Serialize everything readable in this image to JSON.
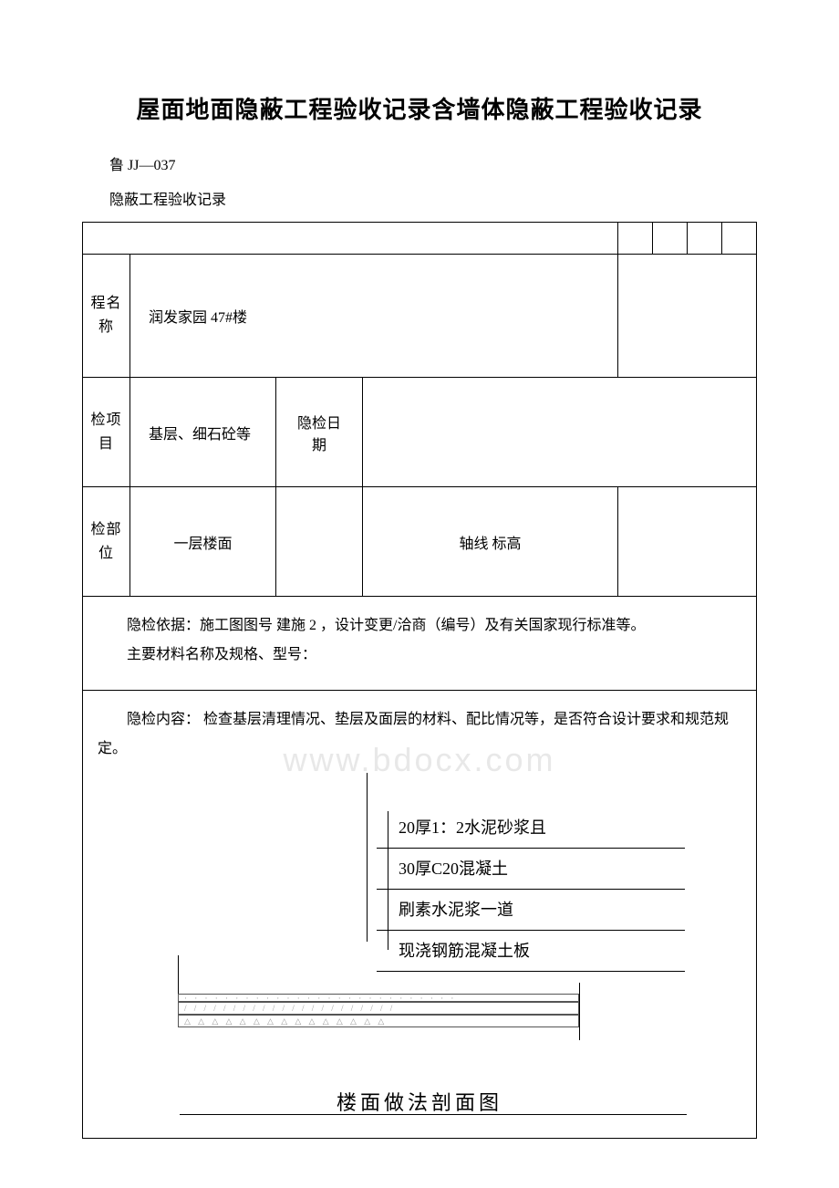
{
  "document": {
    "title": "屋面地面隐蔽工程验收记录含墙体隐蔽工程验收记录",
    "code": "鲁 JJ—037",
    "subtitle": "隐蔽工程验收记录"
  },
  "form": {
    "row1": {
      "label": "程名称",
      "value": "润发家园 47#楼"
    },
    "row2": {
      "label": "检项目",
      "value1": "基层、细石砼等",
      "value2": "隐检日期"
    },
    "row3": {
      "label": "检部位",
      "value1": "一层楼面",
      "value3": "轴线 标高"
    },
    "basis": {
      "line1": "隐检依据：施工图图号 建施 2 ，设计变更/洽商（编号）及有关国家现行标准等。",
      "line2": "主要材料名称及规格、型号："
    },
    "content": {
      "text": "隐检内容： 检查基层清理情况、垫层及面层的材料、配比情况等，是否符合设计要求和规范规定。"
    }
  },
  "diagram": {
    "layers": [
      "20厚1：2水泥砂浆且",
      "30厚C20混凝土",
      "刷素水泥浆一道",
      "现浇钢筋混凝土板"
    ],
    "caption": "楼面做法剖面图",
    "watermark": "www.bdocx.com"
  },
  "styling": {
    "page_bg": "#ffffff",
    "text_color": "#000000",
    "border_color": "#000000",
    "watermark_color": "#e8e8e8",
    "title_fontsize": 26,
    "body_fontsize": 16,
    "diagram_label_fontsize": 18,
    "diagram_title_fontsize": 22
  }
}
